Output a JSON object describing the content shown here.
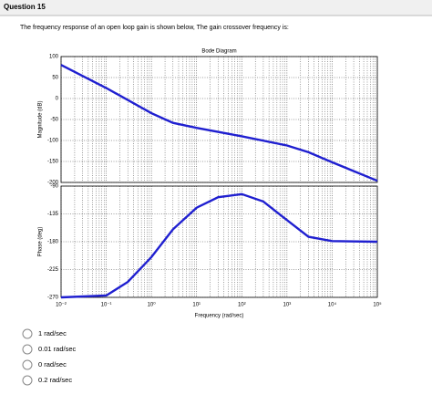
{
  "header": {
    "title": "Question 15"
  },
  "prompt": "The frequency response of an open loop gain is shown below, The gain crossover frequency is:",
  "chart_data": [
    {
      "type": "line",
      "title": "Bode Diagram",
      "y_label": "Magnitude (dB)",
      "log_x": true,
      "grid": true,
      "xlim": [
        0.01,
        100000
      ],
      "xticks": [
        0.01,
        0.1,
        1,
        10,
        100,
        1000,
        10000,
        100000
      ],
      "ylim": [
        -200,
        100
      ],
      "yticks": [
        -200,
        -150,
        -100,
        -50,
        0,
        50,
        100
      ],
      "x": [
        0.01,
        0.1,
        1,
        3,
        10,
        100,
        1000,
        3000,
        10000,
        100000
      ],
      "series": [
        {
          "color": "#1f1fd0",
          "values": [
            80,
            25,
            -35,
            -58,
            -70,
            -90,
            -112,
            -128,
            -152,
            -196
          ]
        }
      ]
    },
    {
      "type": "line",
      "y_label": "Phase (deg)",
      "x_label": "Frequency  (rad/sec)",
      "log_x": true,
      "grid": true,
      "xlim": [
        0.01,
        100000
      ],
      "xticks": [
        {
          "value": 0.01,
          "label": "10⁻²"
        },
        {
          "value": 0.1,
          "label": "10⁻¹"
        },
        {
          "value": 1,
          "label": "10⁰"
        },
        {
          "value": 10,
          "label": "10¹"
        },
        {
          "value": 100,
          "label": "10²"
        },
        {
          "value": 1000,
          "label": "10³"
        },
        {
          "value": 10000,
          "label": "10⁴"
        },
        {
          "value": 100000,
          "label": "10⁵"
        }
      ],
      "ylim": [
        -270,
        -90
      ],
      "yticks": [
        -270,
        -225,
        -180,
        -135,
        -90
      ],
      "x": [
        0.01,
        0.1,
        0.3,
        1,
        3,
        10,
        30,
        100,
        300,
        1000,
        3000,
        10000,
        100000
      ],
      "series": [
        {
          "color": "#1f1fd0",
          "values": [
            -270,
            -267,
            -245,
            -205,
            -160,
            -125,
            -108,
            -103,
            -115,
            -145,
            -172,
            -179,
            -180
          ]
        }
      ]
    }
  ],
  "options": [
    "1 rad/sec",
    "0.01 rad/sec",
    "0 rad/sec",
    "0.2 rad/sec"
  ]
}
